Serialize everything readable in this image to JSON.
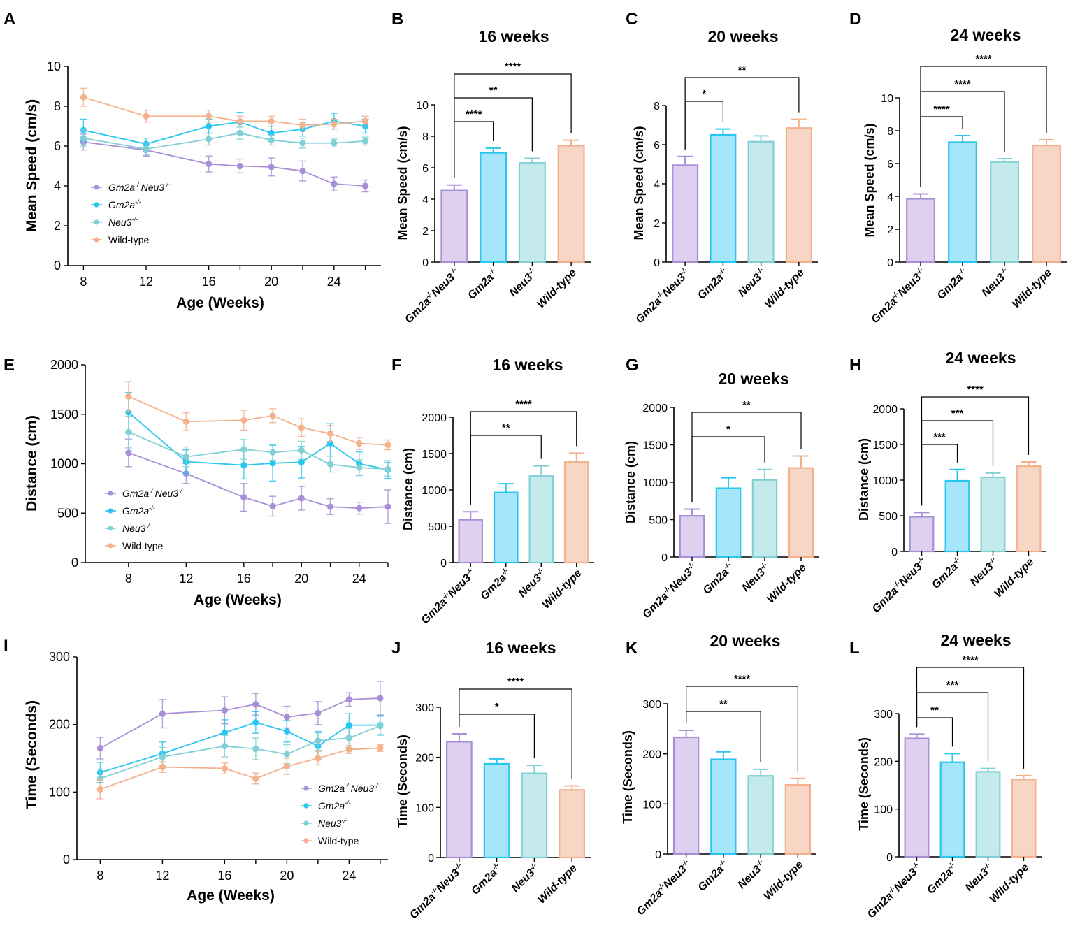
{
  "series_colors": [
    "#a98fd8",
    "#29c6ef",
    "#80d0d6",
    "#f3b18e"
  ],
  "bar_fills": [
    "#ddd1ef",
    "#a6e6fa",
    "#c4eaec",
    "#f7d6c6"
  ],
  "chart_data": [
    {
      "panel": "A",
      "type": "line",
      "title": "",
      "xlabel": "Age (Weeks)",
      "ylabel": "Mean Speed (cm/s)",
      "xlim": [
        7,
        27
      ],
      "ylim": [
        0,
        10
      ],
      "xticks": [
        8,
        12,
        16,
        20,
        24
      ],
      "yticks": [
        0,
        2,
        4,
        6,
        8,
        10
      ],
      "legend": [
        "Gm2a-/-Neu3-/-",
        "Gm2a-/-",
        "Neu3-/-",
        "Wild-type"
      ],
      "legend_position": "bottom-left",
      "series": [
        {
          "name": "Gm2a-/-Neu3-/-",
          "x": [
            8,
            12,
            16,
            18,
            20,
            22,
            24,
            26
          ],
          "y": [
            6.2,
            5.8,
            5.1,
            5.0,
            4.95,
            4.75,
            4.1,
            4.0
          ],
          "err": [
            0.4,
            0.3,
            0.4,
            0.35,
            0.45,
            0.5,
            0.35,
            0.3
          ]
        },
        {
          "name": "Gm2a-/-",
          "x": [
            8,
            12,
            16,
            18,
            20,
            22,
            24,
            26
          ],
          "y": [
            6.8,
            6.1,
            7.0,
            7.2,
            6.65,
            6.85,
            7.25,
            7.0
          ],
          "err": [
            0.55,
            0.3,
            0.35,
            0.5,
            0.35,
            0.35,
            0.4,
            0.35
          ]
        },
        {
          "name": "Neu3-/-",
          "x": [
            8,
            12,
            16,
            18,
            20,
            22,
            24,
            26
          ],
          "y": [
            6.4,
            5.85,
            6.35,
            6.65,
            6.3,
            6.15,
            6.15,
            6.25
          ],
          "err": [
            0.4,
            0.3,
            0.3,
            0.3,
            0.25,
            0.25,
            0.2,
            0.2
          ]
        },
        {
          "name": "Wild-type",
          "x": [
            8,
            12,
            16,
            18,
            20,
            22,
            24,
            26
          ],
          "y": [
            8.45,
            7.5,
            7.5,
            7.25,
            7.25,
            7.05,
            7.1,
            7.25
          ],
          "err": [
            0.45,
            0.3,
            0.3,
            0.25,
            0.25,
            0.3,
            0.25,
            0.25
          ]
        }
      ]
    },
    {
      "panel": "B",
      "type": "bar",
      "title": "16 weeks",
      "ylabel": "Mean Speed (cm/s)",
      "categories": [
        "Gm2a-/-Neu3-/-",
        "Gm2a-/-",
        "Neu3-/-",
        "Wild-type"
      ],
      "values": [
        4.55,
        6.95,
        6.3,
        7.4
      ],
      "err": [
        0.35,
        0.3,
        0.3,
        0.35
      ],
      "ylim": [
        0,
        10
      ],
      "yticks": [
        0,
        2,
        4,
        6,
        8,
        10
      ],
      "comparisons": [
        {
          "from": 0,
          "to": 1,
          "label": "****"
        },
        {
          "from": 0,
          "to": 2,
          "label": "**"
        },
        {
          "from": 0,
          "to": 3,
          "label": "****"
        }
      ]
    },
    {
      "panel": "C",
      "type": "bar",
      "title": "20 weeks",
      "ylabel": "Mean Speed (cm/s)",
      "categories": [
        "Gm2a-/-Neu3-/-",
        "Gm2a-/-",
        "Neu3-/-",
        "Wild-type"
      ],
      "values": [
        4.95,
        6.5,
        6.15,
        6.85
      ],
      "err": [
        0.45,
        0.3,
        0.3,
        0.45
      ],
      "ylim": [
        0,
        8
      ],
      "yticks": [
        0,
        2,
        4,
        6,
        8
      ],
      "comparisons": [
        {
          "from": 0,
          "to": 1,
          "label": "*"
        },
        {
          "from": 0,
          "to": 3,
          "label": "**"
        }
      ]
    },
    {
      "panel": "D",
      "type": "bar",
      "title": "24 weeks",
      "ylabel": "Mean Speed (cm/s)",
      "categories": [
        "Gm2a-/-Neu3-/-",
        "Gm2a-/-",
        "Neu3-/-",
        "Wild-type"
      ],
      "values": [
        3.85,
        7.3,
        6.1,
        7.1
      ],
      "err": [
        0.3,
        0.4,
        0.2,
        0.35
      ],
      "ylim": [
        0,
        10
      ],
      "yticks": [
        0,
        2,
        4,
        6,
        8,
        10
      ],
      "comparisons": [
        {
          "from": 0,
          "to": 1,
          "label": "****"
        },
        {
          "from": 0,
          "to": 2,
          "label": "****"
        },
        {
          "from": 0,
          "to": 3,
          "label": "****"
        }
      ]
    },
    {
      "panel": "E",
      "type": "line",
      "title": "",
      "xlabel": "Age (Weeks)",
      "ylabel": "Distance (cm)",
      "xlim": [
        5,
        26
      ],
      "ylim": [
        0,
        2000
      ],
      "xticks": [
        8,
        12,
        16,
        20,
        24
      ],
      "yticks": [
        0,
        500,
        1000,
        1500,
        2000
      ],
      "legend": [
        "Gm2a-/-Neu3-/-",
        "Gm2a-/-",
        "Neu3-/-",
        "Wild-type"
      ],
      "legend_position": "bottom-left",
      "series": [
        {
          "name": "Gm2a-/-Neu3-/-",
          "x": [
            8,
            12,
            16,
            18,
            20,
            22,
            24,
            26
          ],
          "y": [
            1110,
            900,
            660,
            570,
            650,
            565,
            550,
            565
          ],
          "err": [
            140,
            100,
            140,
            100,
            120,
            80,
            60,
            170
          ]
        },
        {
          "name": "Gm2a-/-",
          "x": [
            8,
            12,
            16,
            18,
            20,
            22,
            24,
            26
          ],
          "y": [
            1520,
            1020,
            985,
            1005,
            1015,
            1205,
            1000,
            940
          ],
          "err": [
            200,
            120,
            140,
            180,
            160,
            200,
            120,
            90
          ]
        },
        {
          "name": "Neu3-/-",
          "x": [
            8,
            12,
            16,
            18,
            20,
            22,
            24,
            26
          ],
          "y": [
            1320,
            1070,
            1145,
            1115,
            1135,
            995,
            960,
            945
          ],
          "err": [
            160,
            100,
            100,
            80,
            90,
            80,
            80,
            70
          ]
        },
        {
          "name": "Wild-type",
          "x": [
            8,
            12,
            16,
            18,
            20,
            22,
            24,
            26
          ],
          "y": [
            1680,
            1425,
            1440,
            1485,
            1365,
            1305,
            1205,
            1190
          ],
          "err": [
            150,
            90,
            100,
            70,
            90,
            80,
            60,
            50
          ]
        }
      ]
    },
    {
      "panel": "F",
      "type": "bar",
      "title": "16 weeks",
      "ylabel": "Distance (cm)",
      "categories": [
        "Gm2a-/-Neu3-/-",
        "Gm2a-/-",
        "Neu3-/-",
        "Wild-type"
      ],
      "values": [
        590,
        965,
        1190,
        1385
      ],
      "err": [
        110,
        120,
        140,
        120
      ],
      "ylim": [
        0,
        2000
      ],
      "yticks": [
        0,
        500,
        1000,
        1500,
        2000
      ],
      "comparisons": [
        {
          "from": 0,
          "to": 2,
          "label": "**"
        },
        {
          "from": 0,
          "to": 3,
          "label": "****"
        }
      ]
    },
    {
      "panel": "G",
      "type": "bar",
      "title": "20 weeks",
      "ylabel": "Distance (cm)",
      "categories": [
        "Gm2a-/-Neu3-/-",
        "Gm2a-/-",
        "Neu3-/-",
        "Wild-type"
      ],
      "values": [
        550,
        920,
        1030,
        1190
      ],
      "err": [
        90,
        140,
        140,
        160
      ],
      "ylim": [
        0,
        2000
      ],
      "yticks": [
        0,
        500,
        1000,
        1500,
        2000
      ],
      "comparisons": [
        {
          "from": 0,
          "to": 2,
          "label": "*"
        },
        {
          "from": 0,
          "to": 3,
          "label": "**"
        }
      ]
    },
    {
      "panel": "H",
      "type": "bar",
      "title": "24 weeks",
      "ylabel": "Distance (cm)",
      "categories": [
        "Gm2a-/-Neu3-/-",
        "Gm2a-/-",
        "Neu3-/-",
        "Wild-type"
      ],
      "values": [
        485,
        990,
        1040,
        1195
      ],
      "err": [
        60,
        160,
        60,
        60
      ],
      "ylim": [
        0,
        2000
      ],
      "yticks": [
        0,
        500,
        1000,
        1500,
        2000
      ],
      "comparisons": [
        {
          "from": 0,
          "to": 1,
          "label": "***"
        },
        {
          "from": 0,
          "to": 2,
          "label": "***"
        },
        {
          "from": 0,
          "to": 3,
          "label": "****"
        }
      ]
    },
    {
      "panel": "I",
      "type": "line",
      "title": "",
      "xlabel": "Age (Weeks)",
      "ylabel": "Time (Seconds)",
      "xlim": [
        6.5,
        26.5
      ],
      "ylim": [
        0,
        300
      ],
      "xticks": [
        8,
        12,
        16,
        20,
        24
      ],
      "yticks": [
        0,
        100,
        200,
        300
      ],
      "legend": [
        "Gm2a-/-Neu3-/-",
        "Gm2a-/-",
        "Neu3-/-",
        "Wild-type"
      ],
      "legend_position": "bottom-right",
      "series": [
        {
          "name": "Gm2a-/-Neu3-/-",
          "x": [
            8,
            12,
            16,
            18,
            20,
            22,
            24,
            26
          ],
          "y": [
            165,
            216,
            221,
            230,
            211,
            217,
            237,
            239
          ],
          "err": [
            16,
            21,
            20,
            16,
            16,
            17,
            10,
            25
          ]
        },
        {
          "name": "Gm2a-/-",
          "x": [
            8,
            12,
            16,
            18,
            20,
            22,
            24,
            26
          ],
          "y": [
            129,
            157,
            188,
            203,
            190,
            168,
            199,
            199
          ],
          "err": [
            15,
            17,
            19,
            16,
            16,
            20,
            17,
            14
          ]
        },
        {
          "name": "Neu3-/-",
          "x": [
            8,
            12,
            16,
            18,
            20,
            22,
            24,
            26
          ],
          "y": [
            120,
            152,
            168,
            164,
            156,
            176,
            180,
            198
          ],
          "err": [
            14,
            14,
            16,
            16,
            14,
            14,
            14,
            14
          ]
        },
        {
          "name": "Wild-type",
          "x": [
            8,
            12,
            16,
            18,
            20,
            22,
            24,
            26
          ],
          "y": [
            104,
            137,
            135,
            120,
            138,
            150,
            163,
            165
          ],
          "err": [
            14,
            8,
            8,
            8,
            12,
            10,
            6,
            5
          ]
        }
      ]
    },
    {
      "panel": "J",
      "type": "bar",
      "title": "16 weeks",
      "ylabel": "Time (Seconds)",
      "categories": [
        "Gm2a-/-Neu3-/-",
        "Gm2a-/-",
        "Neu3-/-",
        "Wild-type"
      ],
      "values": [
        231,
        187,
        168,
        135
      ],
      "err": [
        16,
        10,
        16,
        8
      ],
      "ylim": [
        0,
        300
      ],
      "yticks": [
        0,
        100,
        200,
        300
      ],
      "comparisons": [
        {
          "from": 0,
          "to": 2,
          "label": "*"
        },
        {
          "from": 0,
          "to": 3,
          "label": "****"
        }
      ]
    },
    {
      "panel": "K",
      "type": "bar",
      "title": "20 weeks",
      "ylabel": "Time (Seconds)",
      "categories": [
        "Gm2a-/-Neu3-/-",
        "Gm2a-/-",
        "Neu3-/-",
        "Wild-type"
      ],
      "values": [
        233,
        189,
        156,
        138
      ],
      "err": [
        14,
        15,
        13,
        13
      ],
      "ylim": [
        0,
        300
      ],
      "yticks": [
        0,
        100,
        200,
        300
      ],
      "comparisons": [
        {
          "from": 0,
          "to": 2,
          "label": "**"
        },
        {
          "from": 0,
          "to": 3,
          "label": "****"
        }
      ]
    },
    {
      "panel": "L",
      "type": "bar",
      "title": "24 weeks",
      "ylabel": "Time (Seconds)",
      "categories": [
        "Gm2a-/-Neu3-/-",
        "Gm2a-/-",
        "Neu3-/-",
        "Wild-type"
      ],
      "values": [
        248,
        198,
        178,
        162
      ],
      "err": [
        9,
        18,
        7,
        8
      ],
      "ylim": [
        0,
        300
      ],
      "yticks": [
        0,
        100,
        200,
        300
      ],
      "comparisons": [
        {
          "from": 0,
          "to": 1,
          "label": "**"
        },
        {
          "from": 0,
          "to": 2,
          "label": "***"
        },
        {
          "from": 0,
          "to": 3,
          "label": "****"
        }
      ]
    }
  ]
}
